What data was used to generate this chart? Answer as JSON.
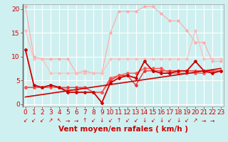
{
  "background_color": "#cff0f0",
  "grid_color": "#ffffff",
  "xlabel": "Vent moyen/en rafales ( km/h )",
  "xlabel_color": "#cc0000",
  "xlabel_fontsize": 7.5,
  "tick_color": "#cc0000",
  "tick_fontsize": 6.5,
  "ylim": [
    -0.5,
    21
  ],
  "xlim": [
    -0.3,
    23.3
  ],
  "yticks": [
    0,
    5,
    10,
    15,
    20
  ],
  "xticks": [
    0,
    1,
    2,
    3,
    4,
    5,
    6,
    7,
    8,
    9,
    10,
    11,
    12,
    13,
    14,
    15,
    16,
    17,
    18,
    19,
    20,
    21,
    22,
    23
  ],
  "series": [
    {
      "x": [
        0,
        1,
        2,
        3,
        4,
        5,
        6,
        7,
        8,
        9,
        10,
        11,
        12,
        13,
        14,
        15,
        16,
        17,
        18,
        19,
        20,
        21,
        22,
        23
      ],
      "y": [
        20.5,
        10.0,
        9.5,
        9.5,
        9.5,
        9.5,
        6.5,
        7.0,
        6.5,
        6.5,
        15.0,
        19.5,
        19.5,
        19.5,
        20.5,
        20.5,
        19.0,
        17.5,
        17.5,
        15.5,
        13.0,
        13.0,
        9.0,
        9.0
      ],
      "color": "#ffaaaa",
      "linewidth": 0.8,
      "marker": "o",
      "markersize": 2.0,
      "zorder": 2
    },
    {
      "x": [
        0,
        1,
        2,
        3,
        4,
        5,
        6,
        7,
        8,
        9,
        10,
        11,
        12,
        13,
        14,
        15,
        16,
        17,
        18,
        19,
        20,
        21,
        22,
        23
      ],
      "y": [
        15.5,
        9.5,
        9.5,
        6.5,
        6.5,
        6.5,
        6.5,
        6.5,
        6.5,
        6.5,
        9.5,
        9.5,
        9.5,
        9.5,
        9.5,
        9.5,
        9.5,
        9.5,
        9.5,
        9.5,
        15.5,
        9.5,
        9.5,
        9.5
      ],
      "color": "#ffbbbb",
      "linewidth": 0.8,
      "marker": "o",
      "markersize": 2.0,
      "zorder": 2
    },
    {
      "x": [
        0,
        1,
        2,
        3,
        4,
        5,
        6,
        7,
        8,
        9,
        10,
        11,
        12,
        13,
        14,
        15,
        16,
        17,
        18,
        19,
        20,
        21,
        22,
        23
      ],
      "y": [
        11.5,
        4.0,
        3.5,
        4.0,
        3.5,
        2.5,
        2.5,
        2.5,
        2.5,
        0.3,
        4.5,
        5.5,
        6.0,
        5.5,
        9.0,
        7.0,
        6.5,
        6.5,
        7.0,
        7.0,
        9.0,
        7.0,
        6.5,
        7.0
      ],
      "color": "#cc0000",
      "linewidth": 1.3,
      "marker": "D",
      "markersize": 2.0,
      "zorder": 4
    },
    {
      "x": [
        0,
        1,
        2,
        3,
        4,
        5,
        6,
        7,
        8,
        9,
        10,
        11,
        12,
        13,
        14,
        15,
        16,
        17,
        18,
        19,
        20,
        21,
        22,
        23
      ],
      "y": [
        3.5,
        3.5,
        3.5,
        4.0,
        3.5,
        3.5,
        3.5,
        3.5,
        2.5,
        2.5,
        5.0,
        6.0,
        6.0,
        4.0,
        7.0,
        7.0,
        7.0,
        7.0,
        7.0,
        7.0,
        7.0,
        7.0,
        7.0,
        7.0
      ],
      "color": "#ee3333",
      "linewidth": 1.0,
      "marker": "D",
      "markersize": 2.0,
      "zorder": 3
    },
    {
      "x": [
        0,
        1,
        2,
        3,
        4,
        5,
        6,
        7,
        8,
        9,
        10,
        11,
        12,
        13,
        14,
        15,
        16,
        17,
        18,
        19,
        20,
        21,
        22,
        23
      ],
      "y": [
        3.5,
        3.5,
        3.5,
        3.5,
        3.5,
        3.0,
        3.0,
        3.5,
        2.5,
        2.5,
        5.5,
        6.0,
        6.5,
        6.5,
        7.5,
        7.5,
        7.5,
        6.5,
        6.5,
        6.5,
        6.5,
        6.5,
        7.0,
        7.0
      ],
      "color": "#ff5555",
      "linewidth": 1.0,
      "marker": "D",
      "markersize": 2.0,
      "zorder": 3
    },
    {
      "x": [
        0,
        23
      ],
      "y": [
        1.5,
        7.5
      ],
      "color": "#cc0000",
      "linewidth": 1.2,
      "marker": null,
      "markersize": 0,
      "zorder": 5
    }
  ],
  "arrow_symbols": [
    "↙",
    "↙",
    "↙",
    "↗",
    "↖",
    "→",
    "→",
    "↑",
    "↙",
    "↓",
    "↙",
    "↑",
    "↙",
    "↙",
    "↓",
    "↙",
    "↓",
    "↙",
    "↓",
    "↙",
    "↗",
    "→",
    "→"
  ],
  "arrow_color": "#cc0000",
  "arrow_fontsize": 5.5
}
